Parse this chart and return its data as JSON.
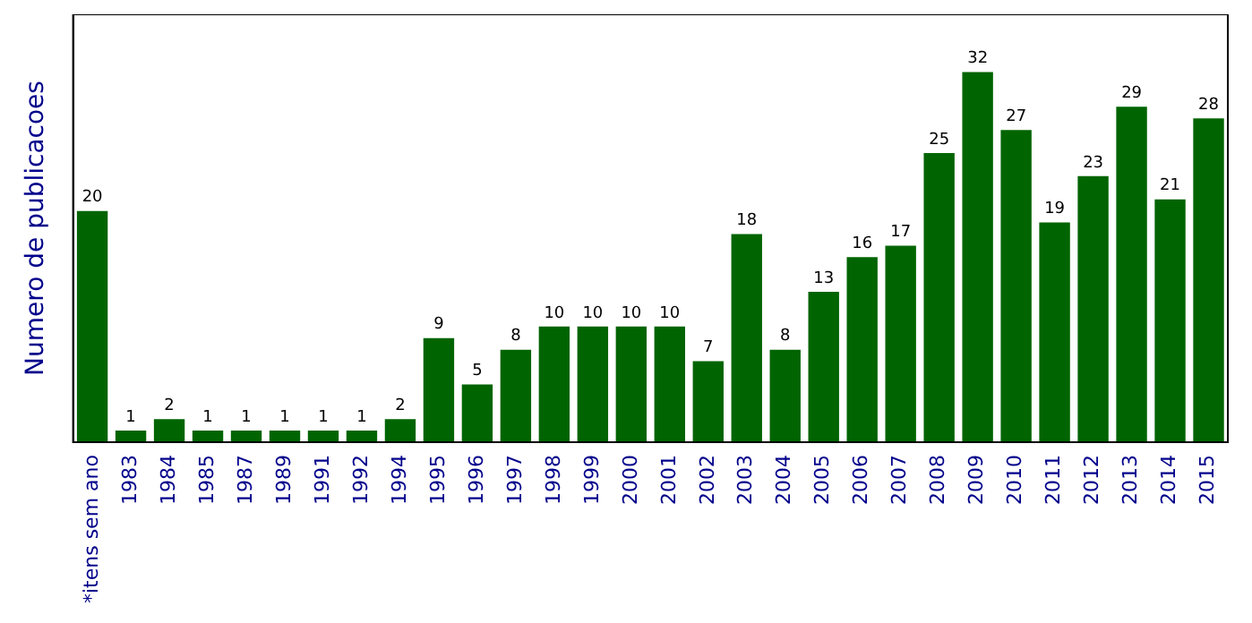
{
  "chart_data": {
    "type": "bar",
    "ylabel": "Numero de publicacoes",
    "categories": [
      "*itens sem ano",
      "1983",
      "1984",
      "1985",
      "1987",
      "1989",
      "1991",
      "1992",
      "1994",
      "1995",
      "1996",
      "1997",
      "1998",
      "1999",
      "2000",
      "2001",
      "2002",
      "2003",
      "2004",
      "2005",
      "2006",
      "2007",
      "2008",
      "2009",
      "2010",
      "2011",
      "2012",
      "2013",
      "2014",
      "2015"
    ],
    "values": [
      20,
      1,
      2,
      1,
      1,
      1,
      1,
      1,
      2,
      9,
      5,
      8,
      10,
      10,
      10,
      10,
      7,
      18,
      8,
      13,
      16,
      17,
      25,
      32,
      27,
      19,
      23,
      29,
      21,
      28
    ],
    "color": "#006400",
    "ylim": [
      0,
      37
    ],
    "tick_labels": "x",
    "data_labels": true,
    "grid": false,
    "legend": false
  }
}
